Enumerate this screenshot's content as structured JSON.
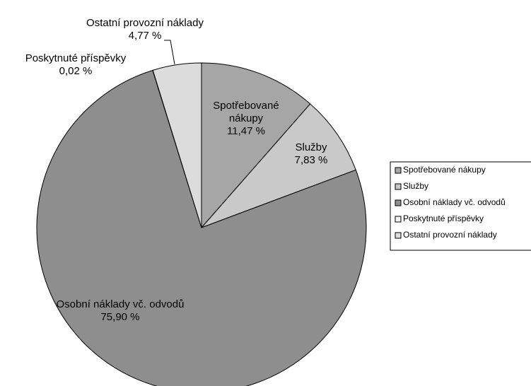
{
  "chart_data": {
    "type": "pie",
    "categories": [
      "Spotřebované nákupy",
      "Služby",
      "Osobní náklady vč. odvodů",
      "Poskytnuté příspěvky",
      "Ostatní provozní náklady"
    ],
    "values": [
      11.47,
      7.83,
      75.9,
      0.02,
      4.77
    ],
    "value_labels": [
      "11,47 %",
      "7,83 %",
      "75,90 %",
      "0,02 %",
      "4,77 %"
    ],
    "colors": [
      "#a6a6a6",
      "#c9c9c9",
      "#8e8e8e",
      "#f2f2f2",
      "#dcdcdc"
    ],
    "legend": "right"
  }
}
